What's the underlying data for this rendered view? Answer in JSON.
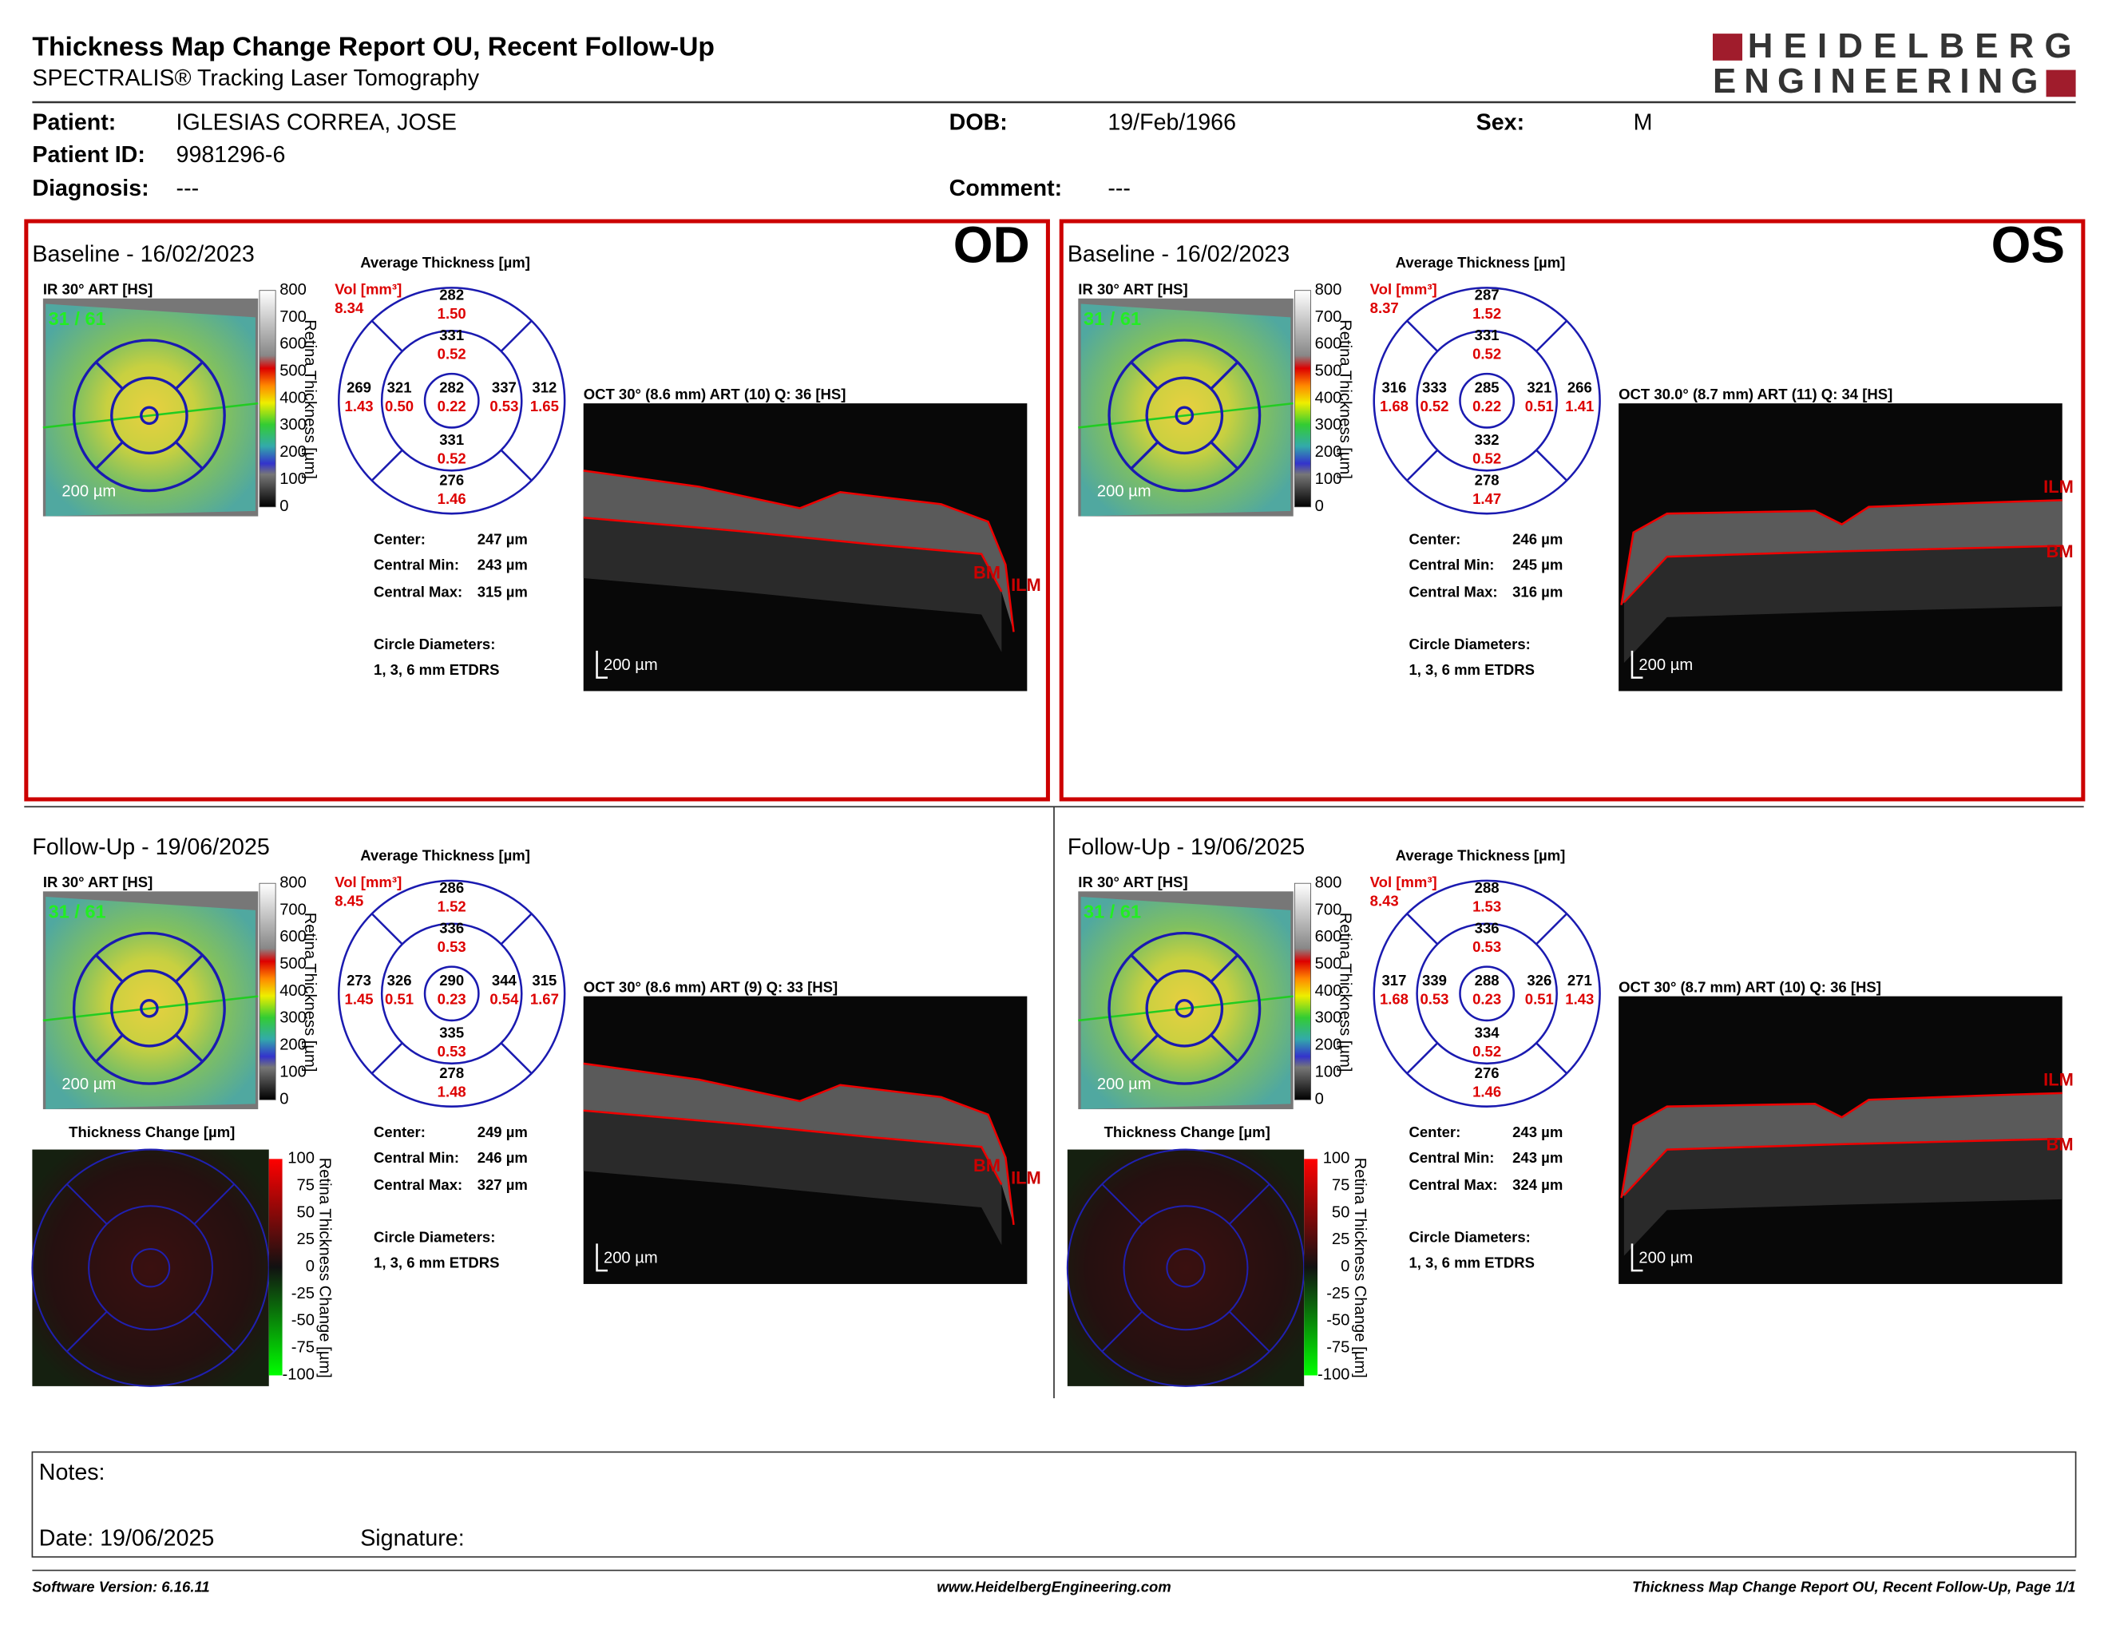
{
  "header": {
    "title": "Thickness Map Change Report OU, Recent Follow-Up",
    "subtitle": "SPECTRALIS® Tracking Laser Tomography",
    "logo_line1": "HEIDELBERG",
    "logo_line2": "ENGINEERING"
  },
  "patient": {
    "patient_label": "Patient:",
    "patient": "IGLESIAS CORREA, JOSE",
    "id_label": "Patient ID:",
    "id": "9981296-6",
    "diagnosis_label": "Diagnosis:",
    "diagnosis": "---",
    "dob_label": "DOB:",
    "dob": "19/Feb/1966",
    "sex_label": "Sex:",
    "sex": "M",
    "comment_label": "Comment:",
    "comment": "---"
  },
  "labels": {
    "ir_label": "IR 30° ART [HS]",
    "fixation": "31 / 61",
    "scale_bar": "200 µm",
    "thickness_ticks": [
      "800",
      "700",
      "600",
      "500",
      "400",
      "300",
      "200",
      "100",
      "0"
    ],
    "thickness_axis": "Retina Thickness [µm]",
    "avg_thickness": "Average Thickness [µm]",
    "vol_label": "Vol [mm³]",
    "center_label": "Center:",
    "min_label": "Central Min:",
    "max_label": "Central Max:",
    "circle_label": "Circle Diameters:",
    "circle_value": "1, 3, 6 mm ETDRS",
    "ilm": "ILM",
    "bm": "BM",
    "change_title": "Thickness Change [µm]",
    "change_ticks": [
      "100",
      "75",
      "50",
      "25",
      "0",
      "-25",
      "-50",
      "-75",
      "-100"
    ],
    "change_axis": "Retina Thickness Change [µm]"
  },
  "panels": [
    {
      "title": "Baseline - 16/02/2023",
      "eye": "OD",
      "oct_label": "OCT 30° (8.6 mm) ART (10) Q: 36 [HS]",
      "volume": "8.34",
      "sectors": [
        [
          "282",
          "1.50"
        ],
        [
          "331",
          "0.52"
        ],
        [
          "269",
          "1.43"
        ],
        [
          "321",
          "0.50"
        ],
        [
          "282",
          "0.22"
        ],
        [
          "337",
          "0.53"
        ],
        [
          "312",
          "1.65"
        ],
        [
          "331",
          "0.52"
        ],
        [
          "276",
          "1.46"
        ]
      ],
      "center": "247 µm",
      "central_min": "243 µm",
      "central_max": "315 µm"
    },
    {
      "title": "Baseline - 16/02/2023",
      "eye": "OS",
      "oct_label": "OCT 30.0° (8.7 mm) ART (11) Q: 34 [HS]",
      "volume": "8.37",
      "sectors": [
        [
          "287",
          "1.52"
        ],
        [
          "331",
          "0.52"
        ],
        [
          "316",
          "1.68"
        ],
        [
          "333",
          "0.52"
        ],
        [
          "285",
          "0.22"
        ],
        [
          "321",
          "0.51"
        ],
        [
          "266",
          "1.41"
        ],
        [
          "332",
          "0.52"
        ],
        [
          "278",
          "1.47"
        ]
      ],
      "center": "246 µm",
      "central_min": "245 µm",
      "central_max": "316 µm"
    },
    {
      "title": "Follow-Up - 19/06/2025",
      "oct_label": "OCT 30° (8.6 mm) ART (9) Q: 33 [HS]",
      "volume": "8.45",
      "sectors": [
        [
          "286",
          "1.52"
        ],
        [
          "336",
          "0.53"
        ],
        [
          "273",
          "1.45"
        ],
        [
          "326",
          "0.51"
        ],
        [
          "290",
          "0.23"
        ],
        [
          "344",
          "0.54"
        ],
        [
          "315",
          "1.67"
        ],
        [
          "335",
          "0.53"
        ],
        [
          "278",
          "1.48"
        ]
      ],
      "center": "249 µm",
      "central_min": "246 µm",
      "central_max": "327 µm"
    },
    {
      "title": "Follow-Up - 19/06/2025",
      "oct_label": "OCT 30° (8.7 mm) ART (10) Q: 36 [HS]",
      "volume": "8.43",
      "sectors": [
        [
          "288",
          "1.53"
        ],
        [
          "336",
          "0.53"
        ],
        [
          "317",
          "1.68"
        ],
        [
          "339",
          "0.53"
        ],
        [
          "288",
          "0.23"
        ],
        [
          "326",
          "0.51"
        ],
        [
          "271",
          "1.43"
        ],
        [
          "334",
          "0.52"
        ],
        [
          "276",
          "1.46"
        ]
      ],
      "center": "243 µm",
      "central_min": "243 µm",
      "central_max": "324 µm"
    }
  ],
  "notes": {
    "notes_label": "Notes:",
    "date": "Date: 19/06/2025",
    "signature_label": "Signature:"
  },
  "footer": {
    "software": "Software Version: 6.16.11",
    "website": "www.HeidelbergEngineering.com",
    "page": "Thickness Map Change Report OU, Recent Follow-Up, Page 1/1"
  }
}
